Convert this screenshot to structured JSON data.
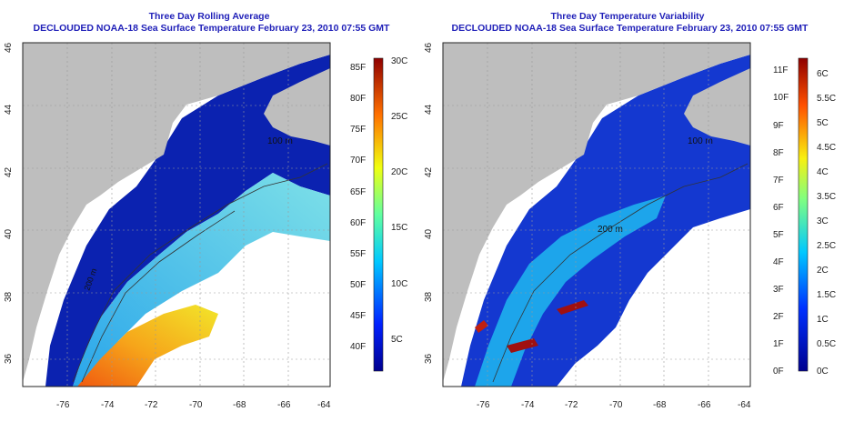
{
  "left_panel": {
    "title_line1": "Three Day Rolling Average",
    "title_line2": "DECLOUDED NOAA-18 Sea Surface Temperature February 23, 2010 07:55 GMT",
    "colorbar_f": [
      "85F",
      "80F",
      "75F",
      "70F",
      "65F",
      "60F",
      "55F",
      "50F",
      "45F",
      "40F"
    ],
    "colorbar_c": [
      "30C",
      "25C",
      "20C",
      "15C",
      "10C",
      "5C"
    ],
    "isobath_labels": [
      "100 m",
      "200 m"
    ]
  },
  "right_panel": {
    "title_line1": "Three Day Temperature Variability",
    "title_line2": "DECLOUDED NOAA-18 Sea Surface Temperature February 23, 2010 07:55 GMT",
    "colorbar_f": [
      "11F",
      "10F",
      "9F",
      "8F",
      "7F",
      "6F",
      "5F",
      "4F",
      "3F",
      "2F",
      "1F",
      "0F"
    ],
    "colorbar_c": [
      "6C",
      "5.5C",
      "5C",
      "4.5C",
      "4C",
      "3.5C",
      "3C",
      "2.5C",
      "2C",
      "1.5C",
      "1C",
      "0.5C",
      "0C"
    ],
    "isobath_labels": [
      "100 m",
      "200 m"
    ]
  },
  "axes": {
    "lon_ticks": [
      "-76",
      "-74",
      "-72",
      "-70",
      "-68",
      "-66",
      "-64"
    ],
    "lat_ticks": [
      "36",
      "38",
      "40",
      "42",
      "44",
      "46"
    ]
  },
  "colors": {
    "title": "#1f1fb8",
    "land": "#bebebe",
    "ocean_cold": "#0a1fa8",
    "ocean_warm": "#e8a020"
  }
}
